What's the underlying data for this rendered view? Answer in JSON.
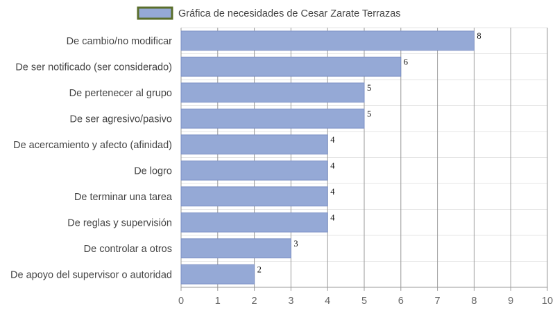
{
  "chart_data": {
    "type": "bar",
    "orientation": "horizontal",
    "categories": [
      "De cambio/no modificar",
      "De ser notificado (ser considerado)",
      "De pertenecer al grupo",
      "De ser agresivo/pasivo",
      "De acercamiento y afecto (afinidad)",
      "De logro",
      "De terminar una tarea",
      "De reglas y supervisión",
      "De controlar a otros",
      "De apoyo del supervisor o autoridad"
    ],
    "series": [
      {
        "name": "Gráfica de necesidades de Cesar Zarate Terrazas",
        "values": [
          8,
          6,
          5,
          5,
          4,
          4,
          4,
          4,
          3,
          2
        ]
      }
    ],
    "xlim": [
      0,
      10
    ],
    "x_ticks": [
      "0",
      "1",
      "2",
      "3",
      "4",
      "5",
      "6",
      "7",
      "8",
      "9",
      "10"
    ],
    "grid": true,
    "legend_position": "top",
    "data_labels": true,
    "colors": {
      "bar_fill": "#95a9d6",
      "bar_stroke": "#7b8fc4",
      "legend_border": "#5a6e2b",
      "grid": "#999999",
      "row_grid": "#e6e6e6"
    }
  }
}
